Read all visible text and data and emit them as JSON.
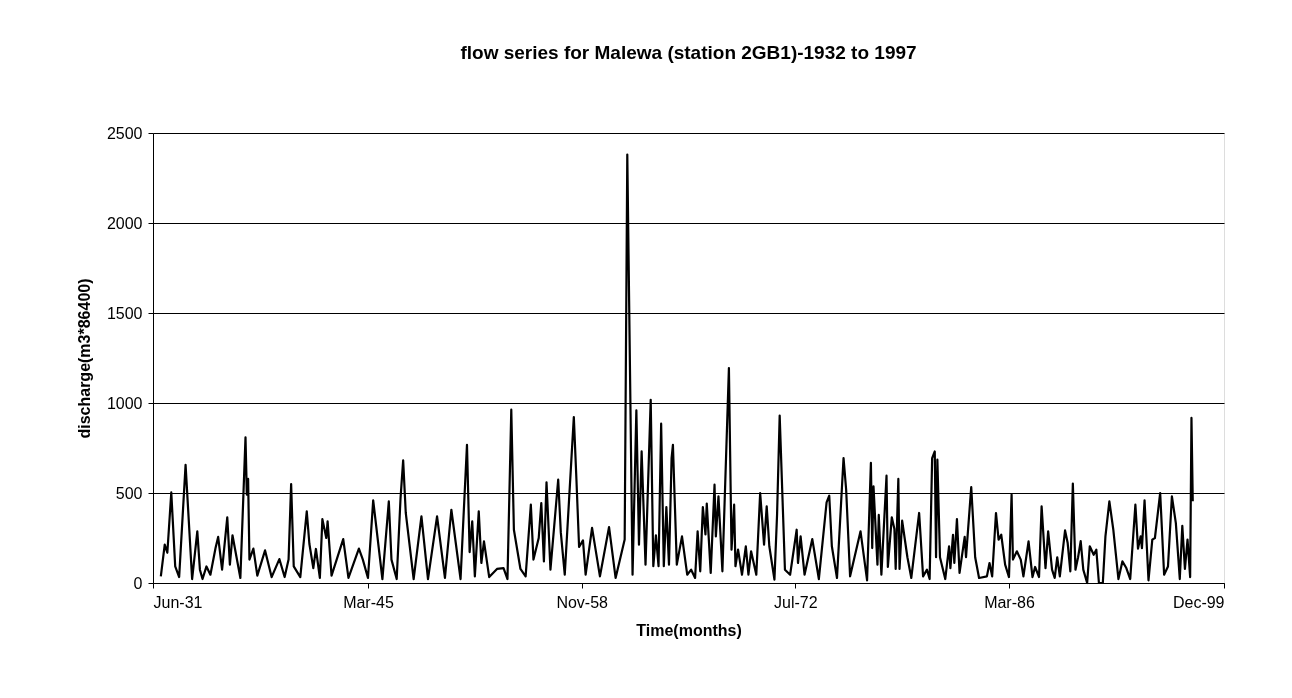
{
  "chart_data": {
    "type": "line",
    "title": "flow series for Malewa (station 2GB1)-1932 to 1997",
    "xlabel": "Time(months)",
    "ylabel": "discharge(m3*86400)",
    "x": [
      "1931-12",
      "1932-03",
      "1932-05",
      "1932-08",
      "1932-11",
      "1933-02",
      "1933-07",
      "1933-12",
      "1934-04",
      "1934-06",
      "1934-08",
      "1934-11",
      "1935-02",
      "1935-06",
      "1935-08",
      "1935-11",
      "1936-03",
      "1936-05",
      "1936-07",
      "1937-01",
      "1937-05",
      "1937-06",
      "1937-07",
      "1937-08",
      "1937-11",
      "1938-02",
      "1938-08",
      "1939-01",
      "1939-07",
      "1939-11",
      "1940-02",
      "1940-04",
      "1940-06",
      "1940-11",
      "1941-04",
      "1941-06",
      "1941-09",
      "1941-11",
      "1942-02",
      "1942-04",
      "1942-07",
      "1942-08",
      "1942-11",
      "1943-08",
      "1943-12",
      "1944-08",
      "1944-11",
      "1945-03",
      "1945-07",
      "1946-02",
      "1946-07",
      "1946-09",
      "1947-01",
      "1947-04",
      "1947-06",
      "1947-08",
      "1948-02",
      "1948-08",
      "1949-01",
      "1949-08",
      "1950-02",
      "1950-07",
      "1951-02",
      "1951-04",
      "1951-07",
      "1951-09",
      "1951-11",
      "1952-01",
      "1952-04",
      "1952-06",
      "1952-08",
      "1952-12",
      "1953-06",
      "1953-11",
      "1954-02",
      "1954-05",
      "1954-07",
      "1954-12",
      "1955-04",
      "1955-08",
      "1955-10",
      "1956-02",
      "1956-04",
      "1956-06",
      "1956-08",
      "1956-11",
      "1957-05",
      "1957-07",
      "1957-10",
      "1958-05",
      "1958-07",
      "1958-09",
      "1958-12",
      "1959-02",
      "1959-07",
      "1960-01",
      "1960-08",
      "1961-01",
      "1961-08",
      "1961-10",
      "1962-02",
      "1962-05",
      "1962-07",
      "1962-09",
      "1962-12",
      "1963-04",
      "1963-06",
      "1963-08",
      "1963-10",
      "1963-12",
      "1964-02",
      "1964-04",
      "1964-06",
      "1964-08",
      "1964-09",
      "1964-12",
      "1965-04",
      "1965-08",
      "1965-11",
      "1966-02",
      "1966-04",
      "1966-06",
      "1966-08",
      "1966-10",
      "1966-11",
      "1967-02",
      "1967-05",
      "1967-06",
      "1967-08",
      "1967-11",
      "1968-04",
      "1968-06",
      "1968-08",
      "1968-09",
      "1968-11",
      "1969-02",
      "1969-05",
      "1969-07",
      "1969-09",
      "1970-01",
      "1970-04",
      "1970-07",
      "1970-09",
      "1970-11",
      "1971-03",
      "1971-05",
      "1971-07",
      "1971-11",
      "1972-03",
      "1972-08",
      "1972-09",
      "1972-11",
      "1973-02",
      "1973-08",
      "1974-01",
      "1974-07",
      "1974-09",
      "1974-11",
      "1975-03",
      "1975-08",
      "1975-10",
      "1976-01",
      "1976-09",
      "1977-02",
      "1977-05",
      "1977-06",
      "1977-07",
      "1977-10",
      "1977-11",
      "1978-01",
      "1978-05",
      "1978-06",
      "1978-09",
      "1978-11",
      "1978-12",
      "1979-02",
      "1979-03",
      "1979-05",
      "1979-09",
      "1979-12",
      "1980-06",
      "1980-09",
      "1980-12",
      "1981-02",
      "1981-04",
      "1981-06",
      "1981-07",
      "1981-08",
      "1981-10",
      "1982-02",
      "1982-05",
      "1982-06",
      "1982-08",
      "1982-09",
      "1982-11",
      "1983-01",
      "1983-05",
      "1983-06",
      "1983-10",
      "1984-01",
      "1984-04",
      "1984-10",
      "1984-12",
      "1985-02",
      "1985-05",
      "1985-07",
      "1985-09",
      "1985-12",
      "1986-03",
      "1986-05",
      "1986-06",
      "1986-09",
      "1986-12",
      "1987-02",
      "1987-06",
      "1987-09",
      "1987-11",
      "1988-02",
      "1988-04",
      "1988-07",
      "1988-09",
      "1988-12",
      "1989-02",
      "1989-04",
      "1989-06",
      "1989-10",
      "1989-12",
      "1990-02",
      "1990-04",
      "1990-06",
      "1990-08",
      "1990-10",
      "1990-12",
      "1991-03",
      "1991-05",
      "1991-08",
      "1991-10",
      "1991-12",
      "1992-03",
      "1992-05",
      "1992-08",
      "1992-11",
      "1993-03",
      "1993-06",
      "1993-09",
      "1993-12",
      "1994-04",
      "1994-06",
      "1994-08",
      "1994-09",
      "1994-11",
      "1995-02",
      "1995-05",
      "1995-07",
      "1995-11",
      "1996-02",
      "1996-05",
      "1996-08",
      "1996-11",
      "1997-02",
      "1997-04",
      "1997-06",
      "1997-08",
      "1997-10",
      "1997-11",
      "1997-12"
    ],
    "series": [
      {
        "color": "#000000",
        "values": [
          37,
          213,
          168,
          503,
          92,
          33,
          657,
          22,
          287,
          74,
          22,
          92,
          46,
          194,
          256,
          74,
          365,
          102,
          265,
          28,
          809,
          491,
          578,
          130,
          191,
          41,
          181,
          33,
          133,
          33,
          130,
          550,
          92,
          33,
          398,
          218,
          83,
          189,
          28,
          355,
          250,
          342,
          41,
          244,
          28,
          191,
          130,
          28,
          459,
          22,
          453,
          130,
          22,
          472,
          681,
          389,
          22,
          370,
          22,
          370,
          28,
          407,
          22,
          318,
          768,
          172,
          342,
          37,
          398,
          111,
          231,
          33,
          78,
          83,
          22,
          963,
          296,
          78,
          37,
          435,
          130,
          250,
          444,
          120,
          559,
          74,
          574,
          281,
          46,
          922,
          574,
          200,
          237,
          46,
          306,
          37,
          311,
          28,
          241,
          2380,
          46,
          959,
          213,
          731,
          102,
          1018,
          93,
          265,
          93,
          885,
          93,
          422,
          102,
          694,
          768,
          102,
          259,
          46,
          74,
          28,
          287,
          65,
          422,
          270,
          441,
          56,
          546,
          259,
          481,
          65,
          1194,
          185,
          435,
          93,
          185,
          46,
          204,
          46,
          176,
          46,
          500,
          213,
          426,
          204,
          19,
          380,
          930,
          74,
          46,
          296,
          111,
          259,
          46,
          244,
          22,
          448,
          485,
          204,
          28,
          694,
          518,
          37,
          287,
          15,
          667,
          194,
          537,
          102,
          378,
          46,
          596,
          89,
          365,
          300,
          78,
          578,
          78,
          346,
          143,
          28,
          389,
          37,
          74,
          22,
          694,
          731,
          143,
          685,
          143,
          22,
          204,
          83,
          268,
          111,
          355,
          56,
          256,
          143,
          533,
          143,
          28,
          37,
          111,
          37,
          389,
          241,
          268,
          102,
          33,
          491,
          130,
          176,
          130,
          37,
          231,
          33,
          89,
          33,
          426,
          83,
          287,
          74,
          28,
          143,
          37,
          292,
          222,
          65,
          552,
          74,
          143,
          233,
          74,
          0,
          204,
          157,
          185,
          0,
          0,
          259,
          454,
          296,
          22,
          120,
          83,
          22,
          435,
          191,
          259,
          194,
          459,
          15,
          241,
          250,
          500,
          46,
          92,
          481,
          333,
          22,
          318,
          78,
          241,
          33,
          917,
          454
        ]
      }
    ],
    "xlim": [
      "1931-06",
      "1999-12"
    ],
    "xticks": [
      {
        "value": "1931-06",
        "label": "Jun-31"
      },
      {
        "value": "1945-03",
        "label": "Mar-45"
      },
      {
        "value": "1958-11",
        "label": "Nov-58"
      },
      {
        "value": "1972-07",
        "label": "Jul-72"
      },
      {
        "value": "1986-03",
        "label": "Mar-86"
      },
      {
        "value": "1999-12",
        "label": "Dec-99"
      }
    ],
    "ylim": [
      0,
      2500
    ],
    "yticks": [
      0,
      500,
      1000,
      1500,
      2000,
      2500
    ],
    "grid": "y",
    "marker": "none",
    "line_style": "solid"
  }
}
